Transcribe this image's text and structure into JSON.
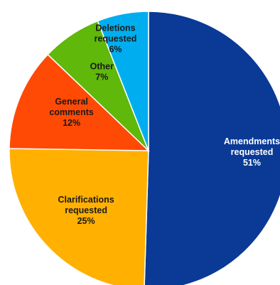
{
  "chart_data": {
    "type": "pie",
    "title": "",
    "legend": "none",
    "labels_on_slices": true,
    "slices": [
      {
        "label_lines": [
          "Amendments",
          "requested"
        ],
        "value": 51,
        "value_label": "51%",
        "color": "#0a3a96",
        "text_color": "#ffffff"
      },
      {
        "label_lines": [
          "Clarifications",
          "requested"
        ],
        "value": 25,
        "value_label": "25%",
        "color": "#ffb000",
        "text_color": "#1a1a1a"
      },
      {
        "label_lines": [
          "General",
          "comments"
        ],
        "value": 12,
        "value_label": "12%",
        "color": "#ff4a06",
        "text_color": "#1a1a1a"
      },
      {
        "label_lines": [
          "Other"
        ],
        "value": 7,
        "value_label": "7%",
        "color": "#5fb80a",
        "text_color": "#1a1a1a"
      },
      {
        "label_lines": [
          "Deletions",
          "requested"
        ],
        "value": 6,
        "value_label": "6%",
        "color": "#00aeef",
        "text_color": "#1a1a1a"
      }
    ]
  }
}
